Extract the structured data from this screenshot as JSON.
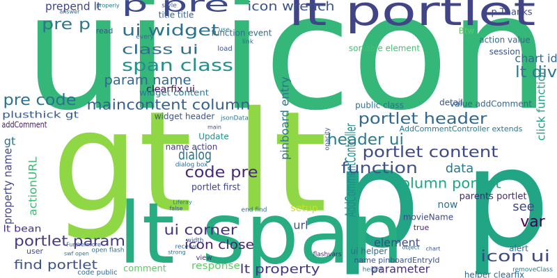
{
  "words": [
    "ui icon",
    "gt lt",
    "p p",
    "lt span",
    "lt portlet",
    "p pre",
    "icon wrench",
    "prepend lt",
    "pre p",
    "ui widget",
    "class ui",
    "span class",
    "param name",
    "clearfix ui",
    "widget content",
    "maincontent column",
    "pre code",
    "plusthick gt",
    "addComment",
    "gt",
    "property name",
    "actionURL",
    "lt bean",
    "portlet param",
    "find portlet",
    "user",
    "swf open",
    "open flash",
    "Furthermore",
    "code public",
    "comment",
    "response",
    "lt property",
    "view",
    "width",
    "receive",
    "strong",
    "ui corner",
    "icon close",
    "portlet first",
    "Liferay",
    "false",
    "dialog box",
    "dialog",
    "code pre",
    "name action",
    "Update",
    "main",
    "jsonData",
    "widget header",
    "pinboard entry",
    "opacity",
    "setup",
    "url",
    "end find",
    "flashvars",
    "AddCommentController",
    "header ui",
    "function",
    "portlet header",
    "portlet content",
    "column portlet",
    "data",
    "now",
    "movieName",
    "true",
    "element",
    "ui helper",
    "name pinboardEntryId",
    "height",
    "object",
    "chart",
    "parameter",
    "parents portlet",
    "see",
    "var",
    "alert",
    "icon ui",
    "helper clearfix",
    "removeClass",
    "public class",
    "detail",
    "value addComment",
    "AddCommentController extends",
    "lt div",
    "chart id",
    "click function",
    "session",
    "action value",
    "p Thanks",
    "Btw",
    "sortable element",
    "title title",
    "function event",
    "read",
    "every",
    "use",
    "load",
    "link",
    "style",
    "answer",
    "properly"
  ]
}
